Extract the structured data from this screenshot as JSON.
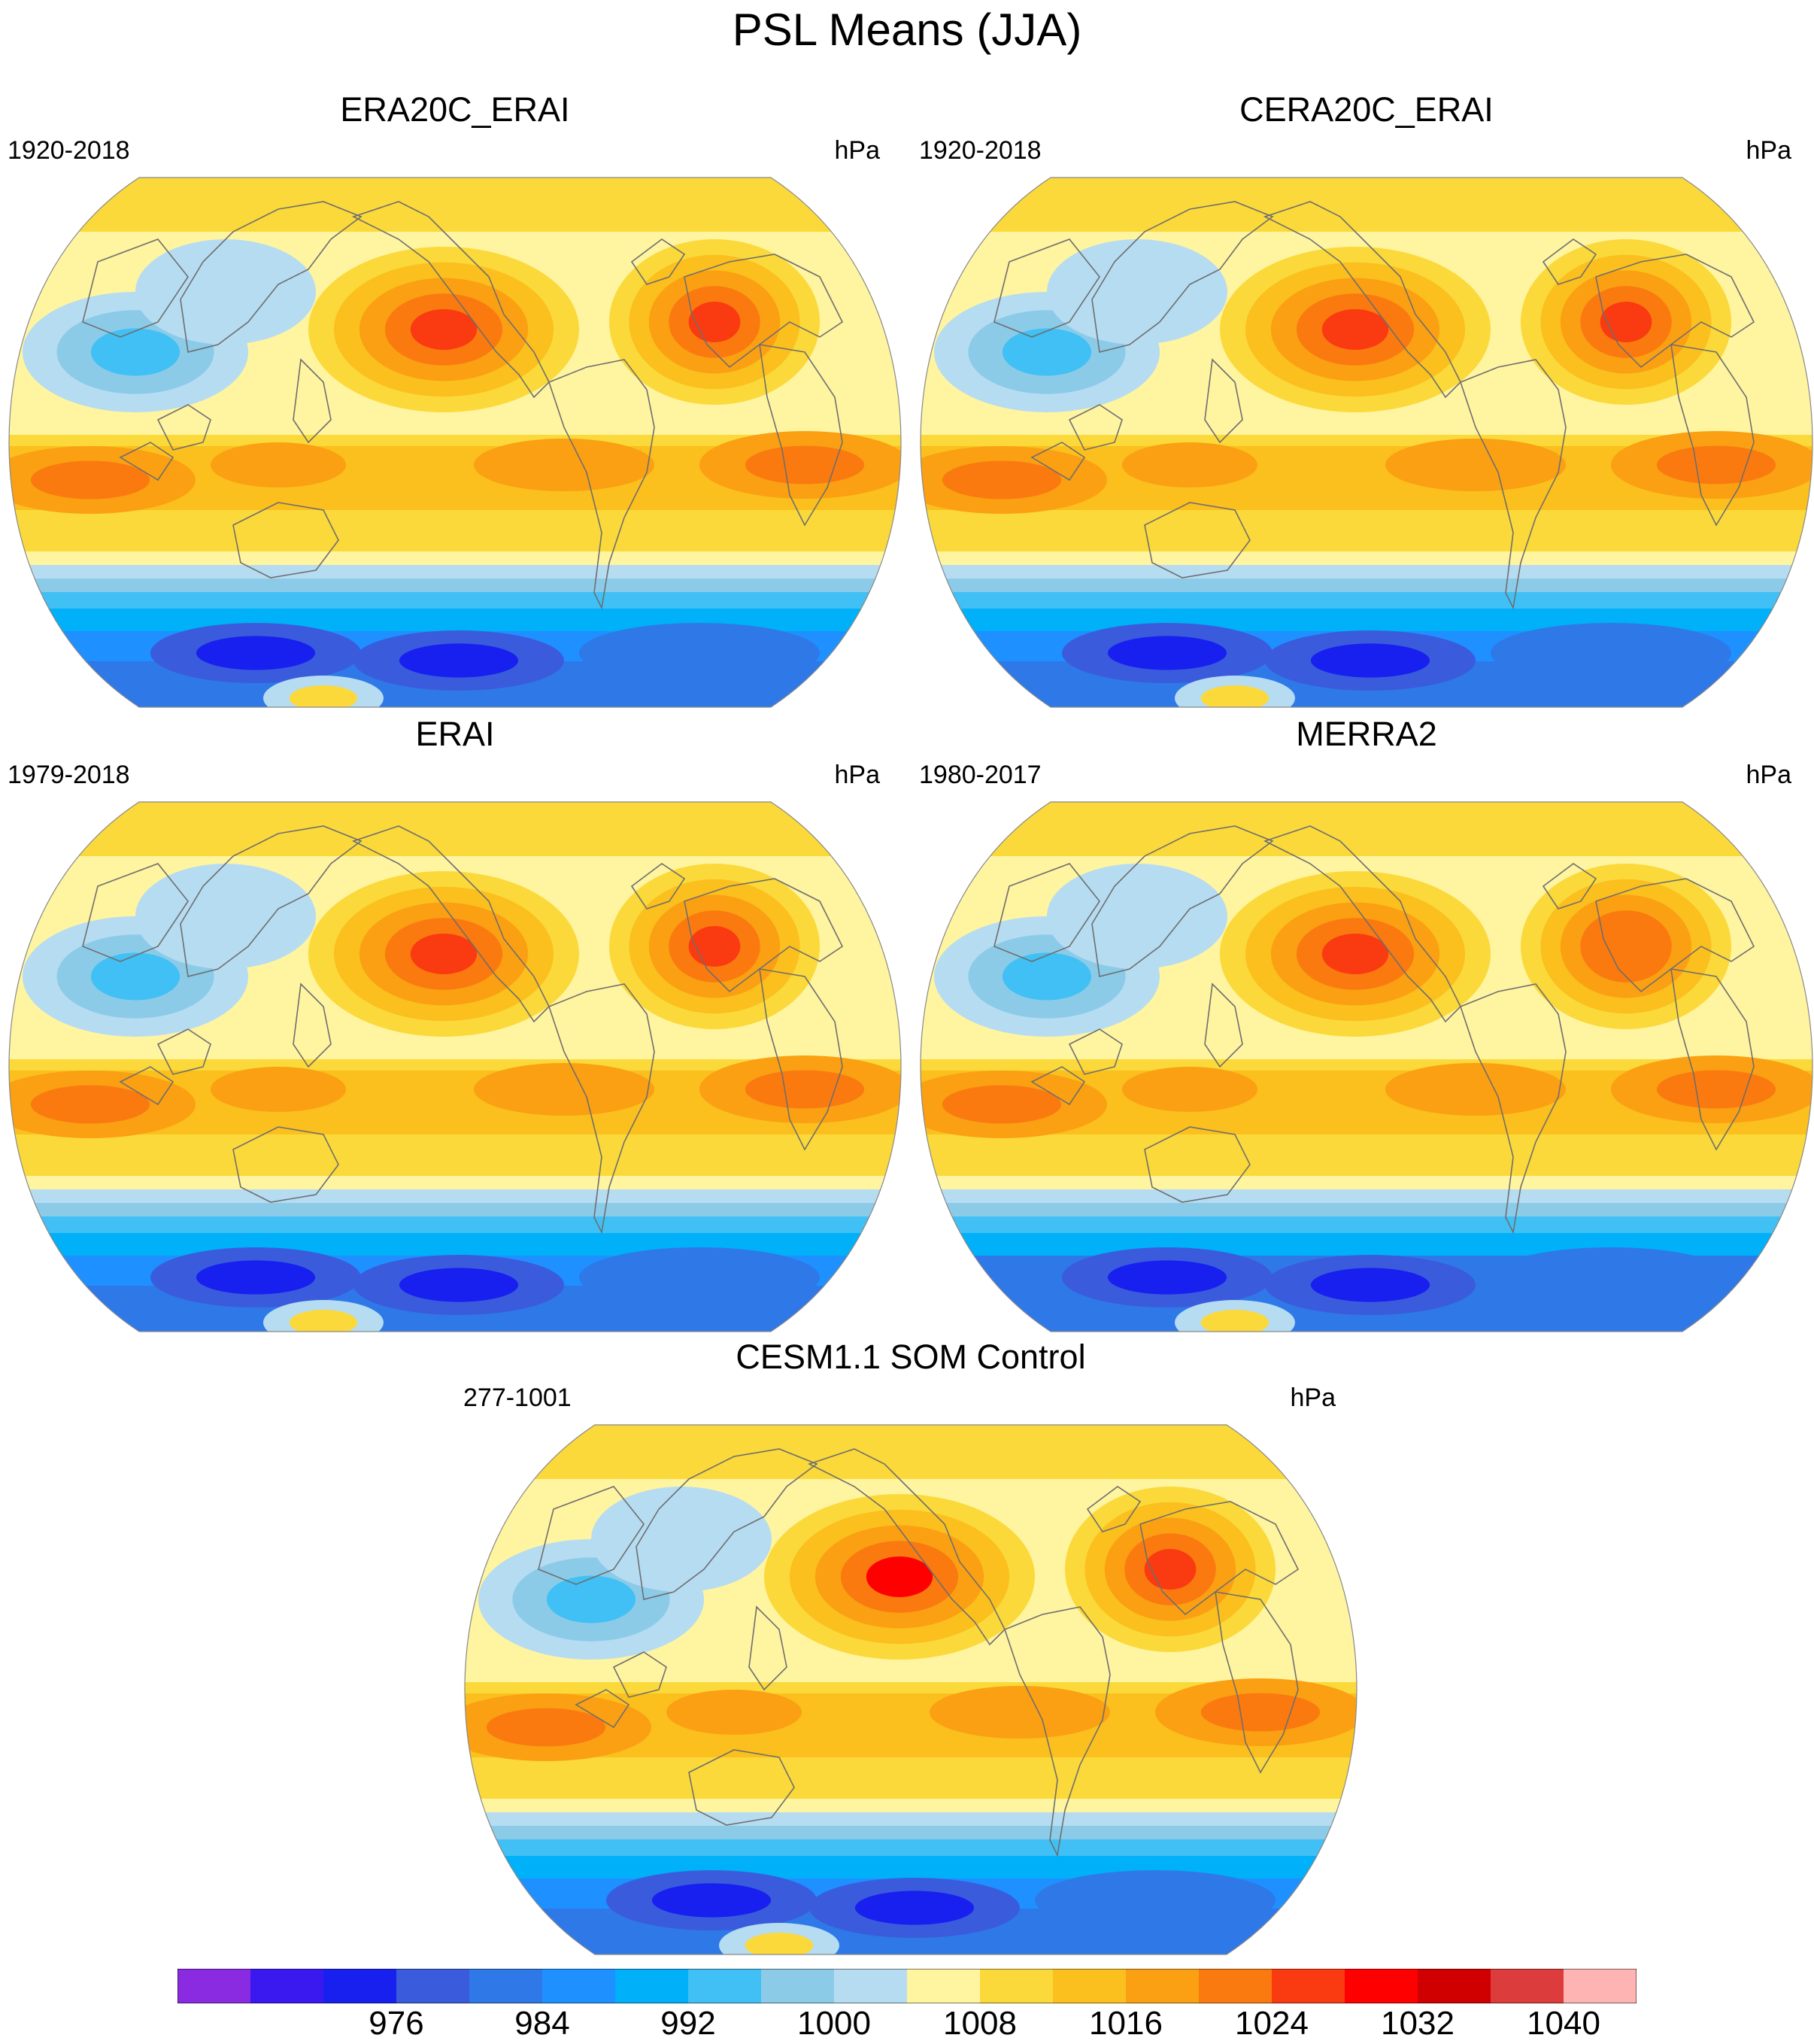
{
  "title": "PSL Means (JJA)",
  "panels": [
    {
      "id": "era20c",
      "title": "ERA20C_ERAI",
      "period": "1920-2018",
      "units": "hPa",
      "variant": 0
    },
    {
      "id": "cera20c",
      "title": "CERA20C_ERAI",
      "period": "1920-2018",
      "units": "hPa",
      "variant": 1
    },
    {
      "id": "erai",
      "title": "ERAI",
      "period": "1979-2018",
      "units": "hPa",
      "variant": 2
    },
    {
      "id": "merra2",
      "title": "MERRA2",
      "period": "1980-2017",
      "units": "hPa",
      "variant": 3
    },
    {
      "id": "cesm",
      "title": "CESM1.1 SOM Control",
      "period": "277-1001",
      "units": "hPa",
      "variant": 4
    }
  ],
  "colorbar": {
    "colors": [
      "#8a2be2",
      "#3a18f0",
      "#1820f0",
      "#3a5cdc",
      "#2f78e8",
      "#1e90ff",
      "#00b0f8",
      "#40c0f4",
      "#8ccbe8",
      "#b6dcf2",
      "#fff4a0",
      "#fbd93a",
      "#fbbf1e",
      "#faa012",
      "#fa7a10",
      "#fa3a10",
      "#ff0000",
      "#d00000",
      "#dc3c3c",
      "#ffb4b4"
    ],
    "labels": [
      "976",
      "984",
      "992",
      "1000",
      "1008",
      "1016",
      "1024",
      "1032",
      "1040"
    ],
    "label_boundary_index": [
      3,
      5,
      7,
      9,
      11,
      13,
      15,
      17,
      19
    ]
  }
}
